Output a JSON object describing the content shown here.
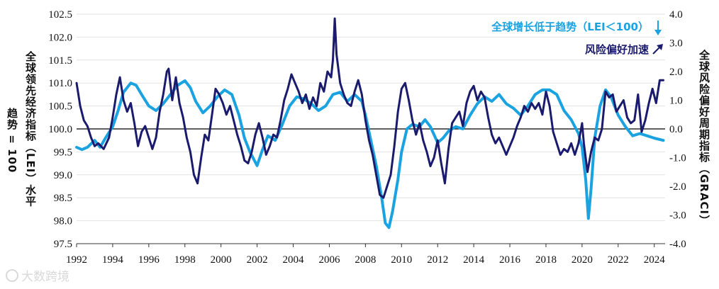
{
  "chart_data": {
    "type": "line",
    "title": "",
    "y_left_label": "全球领先经济指标（LEI）水平",
    "y_left_label_sub": "趋势 = 100",
    "y_right_label": "全球风险偏好周期指标（GRACI）",
    "ylim_left": [
      97.5,
      102.5
    ],
    "ylim_right": [
      -4.0,
      4.0
    ],
    "y_left_ticks": [
      "102.5",
      "102.0",
      "101.5",
      "101.0",
      "100.5",
      "100.0",
      "99.5",
      "99.0",
      "98.5",
      "98.0",
      "97.5"
    ],
    "y_right_ticks": [
      "4.0",
      "3.0",
      "2.0",
      "1.0",
      "0.0",
      "-1.0",
      "-2.0",
      "-3.0",
      "-4.0"
    ],
    "x_ticks": [
      "1992",
      "1994",
      "1996",
      "1998",
      "2000",
      "2002",
      "2004",
      "2006",
      "2008",
      "2010",
      "2012",
      "2014",
      "2016",
      "2018",
      "2020",
      "2022",
      "2024"
    ],
    "xlim": [
      1992,
      2024.6
    ],
    "reference_line_left": 100.0,
    "series": [
      {
        "name": "全球增长低于趋势（LEI＜100）",
        "axis": "left",
        "color": "#1aa3e0",
        "arrow": "down",
        "points": [
          [
            1992.0,
            99.6
          ],
          [
            1992.3,
            99.55
          ],
          [
            1992.6,
            99.6
          ],
          [
            1993.0,
            99.75
          ],
          [
            1993.3,
            99.6
          ],
          [
            1993.6,
            99.8
          ],
          [
            1994.0,
            100.05
          ],
          [
            1994.3,
            100.4
          ],
          [
            1994.6,
            100.8
          ],
          [
            1995.0,
            101.0
          ],
          [
            1995.3,
            100.95
          ],
          [
            1995.6,
            100.75
          ],
          [
            1996.0,
            100.5
          ],
          [
            1996.4,
            100.4
          ],
          [
            1996.8,
            100.55
          ],
          [
            1997.2,
            100.75
          ],
          [
            1997.6,
            100.95
          ],
          [
            1998.0,
            101.05
          ],
          [
            1998.3,
            100.9
          ],
          [
            1998.6,
            100.6
          ],
          [
            1999.0,
            100.35
          ],
          [
            1999.4,
            100.5
          ],
          [
            1999.8,
            100.7
          ],
          [
            2000.2,
            100.85
          ],
          [
            2000.6,
            100.75
          ],
          [
            2001.0,
            100.3
          ],
          [
            2001.3,
            99.8
          ],
          [
            2001.6,
            99.5
          ],
          [
            2002.0,
            99.2
          ],
          [
            2002.3,
            99.55
          ],
          [
            2002.6,
            99.85
          ],
          [
            2003.0,
            99.75
          ],
          [
            2003.4,
            100.1
          ],
          [
            2003.8,
            100.5
          ],
          [
            2004.2,
            100.7
          ],
          [
            2004.6,
            100.65
          ],
          [
            2005.0,
            100.55
          ],
          [
            2005.4,
            100.4
          ],
          [
            2005.8,
            100.5
          ],
          [
            2006.2,
            100.75
          ],
          [
            2006.6,
            100.8
          ],
          [
            2007.0,
            100.6
          ],
          [
            2007.4,
            100.75
          ],
          [
            2007.8,
            100.6
          ],
          [
            2008.0,
            100.3
          ],
          [
            2008.3,
            99.75
          ],
          [
            2008.6,
            99.2
          ],
          [
            2008.9,
            98.5
          ],
          [
            2009.1,
            97.95
          ],
          [
            2009.3,
            97.85
          ],
          [
            2009.5,
            98.2
          ],
          [
            2009.8,
            98.9
          ],
          [
            2010.0,
            99.5
          ],
          [
            2010.3,
            100.0
          ],
          [
            2010.6,
            100.1
          ],
          [
            2011.0,
            100.05
          ],
          [
            2011.3,
            100.2
          ],
          [
            2011.6,
            100.05
          ],
          [
            2012.0,
            99.7
          ],
          [
            2012.3,
            99.8
          ],
          [
            2012.6,
            99.95
          ],
          [
            2013.0,
            100.05
          ],
          [
            2013.4,
            100.0
          ],
          [
            2013.8,
            100.3
          ],
          [
            2014.2,
            100.55
          ],
          [
            2014.6,
            100.7
          ],
          [
            2015.0,
            100.6
          ],
          [
            2015.4,
            100.75
          ],
          [
            2015.8,
            100.55
          ],
          [
            2016.2,
            100.45
          ],
          [
            2016.6,
            100.3
          ],
          [
            2017.0,
            100.5
          ],
          [
            2017.4,
            100.75
          ],
          [
            2017.8,
            100.85
          ],
          [
            2018.2,
            100.85
          ],
          [
            2018.6,
            100.75
          ],
          [
            2019.0,
            100.4
          ],
          [
            2019.4,
            100.2
          ],
          [
            2019.8,
            99.9
          ],
          [
            2020.0,
            99.6
          ],
          [
            2020.2,
            98.9
          ],
          [
            2020.35,
            98.05
          ],
          [
            2020.5,
            98.7
          ],
          [
            2020.7,
            99.8
          ],
          [
            2021.0,
            100.5
          ],
          [
            2021.3,
            100.85
          ],
          [
            2021.6,
            100.7
          ],
          [
            2022.0,
            100.3
          ],
          [
            2022.4,
            100.05
          ],
          [
            2022.8,
            99.85
          ],
          [
            2023.2,
            99.9
          ],
          [
            2023.6,
            99.85
          ],
          [
            2024.0,
            99.8
          ],
          [
            2024.5,
            99.75
          ]
        ]
      },
      {
        "name": "风险偏好加速",
        "axis": "right",
        "color": "#1b1b6e",
        "arrow": "up",
        "points": [
          [
            1992.0,
            1.6
          ],
          [
            1992.2,
            0.8
          ],
          [
            1992.4,
            0.3
          ],
          [
            1992.6,
            0.1
          ],
          [
            1992.8,
            -0.3
          ],
          [
            1993.0,
            -0.6
          ],
          [
            1993.2,
            -0.5
          ],
          [
            1993.5,
            -0.7
          ],
          [
            1993.8,
            -0.3
          ],
          [
            1994.0,
            0.4
          ],
          [
            1994.2,
            1.2
          ],
          [
            1994.4,
            1.8
          ],
          [
            1994.6,
            1.0
          ],
          [
            1994.8,
            0.6
          ],
          [
            1995.0,
            0.9
          ],
          [
            1995.2,
            0.2
          ],
          [
            1995.4,
            -0.6
          ],
          [
            1995.6,
            -0.1
          ],
          [
            1995.8,
            0.1
          ],
          [
            1996.0,
            -0.3
          ],
          [
            1996.2,
            -0.7
          ],
          [
            1996.4,
            -0.3
          ],
          [
            1996.6,
            0.6
          ],
          [
            1996.8,
            1.2
          ],
          [
            1997.0,
            2.0
          ],
          [
            1997.1,
            2.1
          ],
          [
            1997.3,
            1.0
          ],
          [
            1997.5,
            1.8
          ],
          [
            1997.7,
            0.9
          ],
          [
            1997.9,
            0.4
          ],
          [
            1998.1,
            -0.3
          ],
          [
            1998.3,
            -0.8
          ],
          [
            1998.5,
            -1.6
          ],
          [
            1998.7,
            -1.9
          ],
          [
            1998.9,
            -1.0
          ],
          [
            1999.1,
            -0.2
          ],
          [
            1999.3,
            -0.4
          ],
          [
            1999.5,
            0.5
          ],
          [
            1999.7,
            1.4
          ],
          [
            1999.9,
            1.2
          ],
          [
            2000.1,
            0.9
          ],
          [
            2000.3,
            0.5
          ],
          [
            2000.5,
            0.8
          ],
          [
            2000.7,
            0.3
          ],
          [
            2000.9,
            -0.2
          ],
          [
            2001.1,
            -0.6
          ],
          [
            2001.3,
            -1.1
          ],
          [
            2001.5,
            -1.2
          ],
          [
            2001.7,
            -0.8
          ],
          [
            2001.9,
            -0.2
          ],
          [
            2002.1,
            0.2
          ],
          [
            2002.3,
            -0.3
          ],
          [
            2002.5,
            -0.9
          ],
          [
            2002.7,
            -0.6
          ],
          [
            2002.9,
            -0.2
          ],
          [
            2003.1,
            -0.3
          ],
          [
            2003.3,
            0.3
          ],
          [
            2003.5,
            1.0
          ],
          [
            2003.7,
            1.4
          ],
          [
            2003.9,
            1.9
          ],
          [
            2004.1,
            1.6
          ],
          [
            2004.3,
            1.3
          ],
          [
            2004.5,
            0.9
          ],
          [
            2004.7,
            1.2
          ],
          [
            2004.9,
            0.7
          ],
          [
            2005.1,
            1.1
          ],
          [
            2005.3,
            0.8
          ],
          [
            2005.5,
            1.6
          ],
          [
            2005.7,
            1.3
          ],
          [
            2005.9,
            2.0
          ],
          [
            2006.1,
            1.8
          ],
          [
            2006.2,
            2.4
          ],
          [
            2006.3,
            3.85
          ],
          [
            2006.4,
            2.6
          ],
          [
            2006.6,
            1.6
          ],
          [
            2006.8,
            1.2
          ],
          [
            2007.0,
            0.9
          ],
          [
            2007.2,
            0.8
          ],
          [
            2007.4,
            1.3
          ],
          [
            2007.6,
            1.7
          ],
          [
            2007.8,
            1.2
          ],
          [
            2008.0,
            0.3
          ],
          [
            2008.2,
            -0.4
          ],
          [
            2008.4,
            -0.9
          ],
          [
            2008.6,
            -1.6
          ],
          [
            2008.8,
            -2.3
          ],
          [
            2009.0,
            -2.4
          ],
          [
            2009.2,
            -2.0
          ],
          [
            2009.4,
            -1.6
          ],
          [
            2009.6,
            -0.6
          ],
          [
            2009.8,
            0.6
          ],
          [
            2010.0,
            1.4
          ],
          [
            2010.2,
            1.6
          ],
          [
            2010.4,
            1.0
          ],
          [
            2010.6,
            0.3
          ],
          [
            2010.8,
            -0.2
          ],
          [
            2011.0,
            0.2
          ],
          [
            2011.2,
            -0.4
          ],
          [
            2011.4,
            -0.8
          ],
          [
            2011.6,
            -1.3
          ],
          [
            2011.8,
            -1.0
          ],
          [
            2012.0,
            -0.4
          ],
          [
            2012.2,
            -1.2
          ],
          [
            2012.4,
            -1.9
          ],
          [
            2012.6,
            -0.7
          ],
          [
            2012.8,
            0.2
          ],
          [
            2013.0,
            0.4
          ],
          [
            2013.2,
            0.6
          ],
          [
            2013.4,
            0.1
          ],
          [
            2013.6,
            0.9
          ],
          [
            2013.8,
            1.3
          ],
          [
            2014.0,
            1.5
          ],
          [
            2014.2,
            1.0
          ],
          [
            2014.4,
            1.3
          ],
          [
            2014.6,
            1.1
          ],
          [
            2014.8,
            0.4
          ],
          [
            2015.0,
            -0.2
          ],
          [
            2015.2,
            -0.5
          ],
          [
            2015.4,
            -0.3
          ],
          [
            2015.6,
            -0.6
          ],
          [
            2015.8,
            -0.9
          ],
          [
            2016.0,
            -0.6
          ],
          [
            2016.2,
            -0.3
          ],
          [
            2016.4,
            0.1
          ],
          [
            2016.6,
            0.4
          ],
          [
            2016.8,
            0.8
          ],
          [
            2017.0,
            0.6
          ],
          [
            2017.2,
            0.9
          ],
          [
            2017.4,
            0.7
          ],
          [
            2017.6,
            0.9
          ],
          [
            2017.8,
            0.5
          ],
          [
            2018.0,
            1.3
          ],
          [
            2018.2,
            0.8
          ],
          [
            2018.4,
            -0.1
          ],
          [
            2018.6,
            -0.5
          ],
          [
            2018.8,
            -0.9
          ],
          [
            2019.0,
            -0.7
          ],
          [
            2019.2,
            -0.8
          ],
          [
            2019.4,
            -0.5
          ],
          [
            2019.6,
            -0.9
          ],
          [
            2019.8,
            -0.5
          ],
          [
            2020.0,
            0.2
          ],
          [
            2020.1,
            -0.5
          ],
          [
            2020.3,
            -1.5
          ],
          [
            2020.5,
            -0.8
          ],
          [
            2020.7,
            -0.3
          ],
          [
            2020.9,
            -0.4
          ],
          [
            2021.1,
            0.0
          ],
          [
            2021.3,
            1.3
          ],
          [
            2021.5,
            1.1
          ],
          [
            2021.7,
            1.2
          ],
          [
            2021.9,
            0.6
          ],
          [
            2022.1,
            0.8
          ],
          [
            2022.3,
            1.0
          ],
          [
            2022.5,
            0.4
          ],
          [
            2022.7,
            0.2
          ],
          [
            2022.9,
            0.3
          ],
          [
            2023.1,
            1.2
          ],
          [
            2023.3,
            -0.1
          ],
          [
            2023.5,
            0.3
          ],
          [
            2023.7,
            0.9
          ],
          [
            2023.9,
            1.4
          ],
          [
            2024.1,
            0.9
          ],
          [
            2024.3,
            1.7
          ],
          [
            2024.5,
            1.7
          ]
        ]
      }
    ]
  },
  "watermark": "大数跨境"
}
